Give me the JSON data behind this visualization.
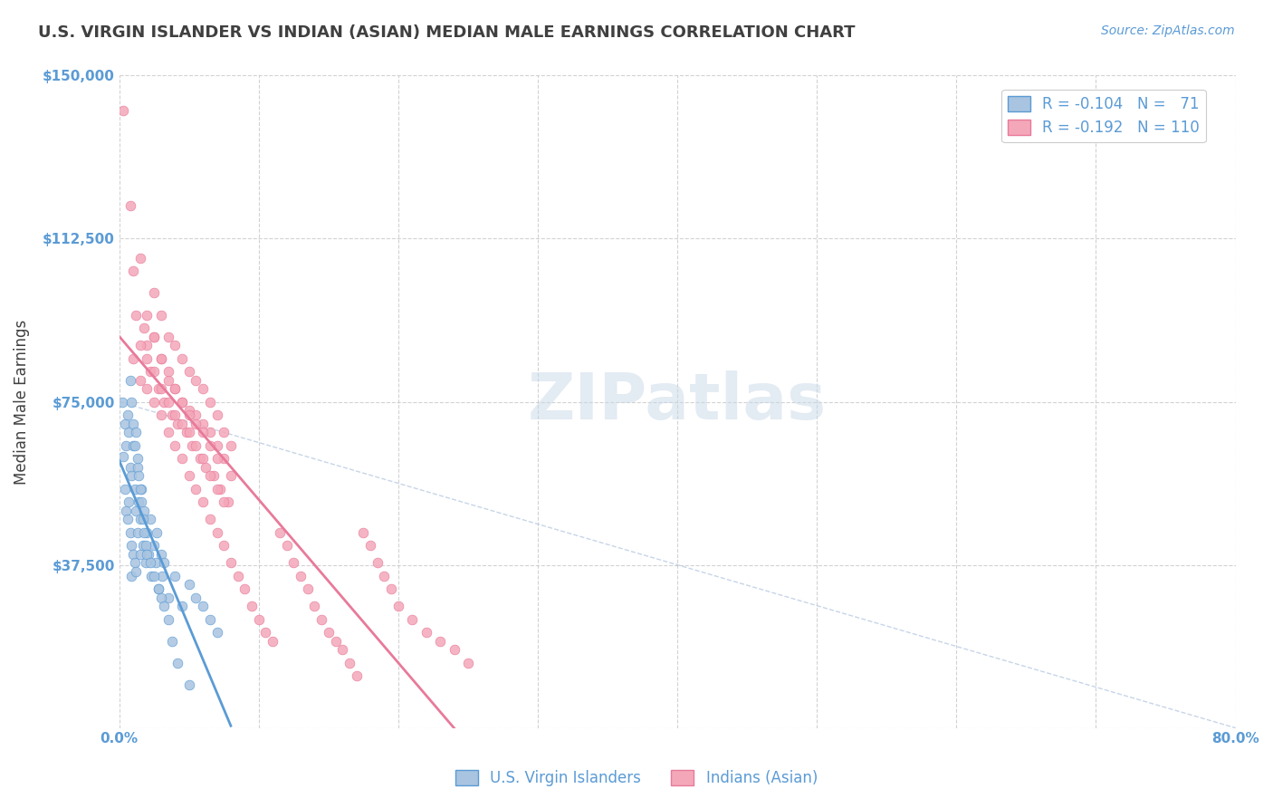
{
  "title": "U.S. VIRGIN ISLANDER VS INDIAN (ASIAN) MEDIAN MALE EARNINGS CORRELATION CHART",
  "source": "Source: ZipAtlas.com",
  "xlabel": "",
  "ylabel": "Median Male Earnings",
  "xlim": [
    0.0,
    0.8
  ],
  "ylim": [
    0,
    150000
  ],
  "yticks": [
    0,
    37500,
    75000,
    112500,
    150000
  ],
  "ytick_labels": [
    "",
    "$37,500",
    "$75,000",
    "$112,500",
    "$150,000"
  ],
  "xticks": [
    0.0,
    0.1,
    0.2,
    0.3,
    0.4,
    0.5,
    0.6,
    0.7,
    0.8
  ],
  "xtick_labels": [
    "0.0%",
    "",
    "",
    "",
    "",
    "",
    "",
    "",
    "80.0%"
  ],
  "legend_R1": "R = -0.104",
  "legend_N1": "N =  71",
  "legend_R2": "R = -0.192",
  "legend_N2": "N = 110",
  "series1_color": "#a8c4e0",
  "series2_color": "#f4a7b9",
  "trend1_color": "#5b9bd5",
  "trend2_color": "#e87a9a",
  "dashed_color": "#b0c4de",
  "watermark": "ZIPatlas",
  "watermark_color": "#c8d8e8",
  "title_color": "#404040",
  "axis_color": "#5b9bd5",
  "series1_name": "U.S. Virgin Islanders",
  "series2_name": "Indians (Asian)",
  "series1_R": -0.104,
  "series1_N": 71,
  "series2_R": -0.192,
  "series2_N": 110,
  "blue_scatter_x": [
    0.002,
    0.003,
    0.004,
    0.004,
    0.005,
    0.005,
    0.006,
    0.006,
    0.007,
    0.007,
    0.008,
    0.008,
    0.009,
    0.009,
    0.009,
    0.01,
    0.01,
    0.011,
    0.011,
    0.012,
    0.012,
    0.013,
    0.013,
    0.014,
    0.015,
    0.015,
    0.016,
    0.017,
    0.018,
    0.019,
    0.02,
    0.021,
    0.022,
    0.023,
    0.025,
    0.026,
    0.027,
    0.028,
    0.03,
    0.031,
    0.032,
    0.035,
    0.04,
    0.045,
    0.05,
    0.055,
    0.06,
    0.065,
    0.07,
    0.008,
    0.009,
    0.01,
    0.011,
    0.012,
    0.013,
    0.014,
    0.015,
    0.016,
    0.017,
    0.018,
    0.019,
    0.02,
    0.022,
    0.025,
    0.028,
    0.03,
    0.032,
    0.035,
    0.038,
    0.042,
    0.05
  ],
  "blue_scatter_y": [
    75000,
    62500,
    70000,
    55000,
    65000,
    50000,
    72000,
    48000,
    68000,
    52000,
    60000,
    45000,
    58000,
    42000,
    35000,
    65000,
    40000,
    55000,
    38000,
    50000,
    36000,
    60000,
    45000,
    52000,
    48000,
    40000,
    55000,
    42000,
    50000,
    38000,
    45000,
    40000,
    48000,
    35000,
    42000,
    38000,
    45000,
    32000,
    40000,
    35000,
    38000,
    30000,
    35000,
    28000,
    33000,
    30000,
    28000,
    25000,
    22000,
    80000,
    75000,
    70000,
    65000,
    68000,
    62000,
    58000,
    55000,
    52000,
    48000,
    45000,
    42000,
    40000,
    38000,
    35000,
    32000,
    30000,
    28000,
    25000,
    20000,
    15000,
    10000
  ],
  "pink_scatter_x": [
    0.003,
    0.008,
    0.01,
    0.012,
    0.015,
    0.018,
    0.02,
    0.022,
    0.025,
    0.028,
    0.03,
    0.032,
    0.035,
    0.038,
    0.04,
    0.042,
    0.045,
    0.048,
    0.05,
    0.052,
    0.055,
    0.058,
    0.06,
    0.062,
    0.065,
    0.068,
    0.07,
    0.072,
    0.075,
    0.078,
    0.08,
    0.025,
    0.03,
    0.035,
    0.04,
    0.045,
    0.05,
    0.055,
    0.06,
    0.065,
    0.07,
    0.075,
    0.08,
    0.02,
    0.025,
    0.03,
    0.035,
    0.04,
    0.045,
    0.05,
    0.055,
    0.06,
    0.065,
    0.07,
    0.015,
    0.02,
    0.025,
    0.03,
    0.035,
    0.04,
    0.045,
    0.05,
    0.055,
    0.06,
    0.065,
    0.07,
    0.075,
    0.01,
    0.015,
    0.02,
    0.025,
    0.03,
    0.035,
    0.04,
    0.045,
    0.05,
    0.055,
    0.06,
    0.065,
    0.07,
    0.075,
    0.08,
    0.085,
    0.09,
    0.095,
    0.1,
    0.105,
    0.11,
    0.115,
    0.12,
    0.125,
    0.13,
    0.135,
    0.14,
    0.145,
    0.15,
    0.155,
    0.16,
    0.165,
    0.17,
    0.175,
    0.18,
    0.185,
    0.19,
    0.195,
    0.2,
    0.21,
    0.22,
    0.23,
    0.24,
    0.25
  ],
  "pink_scatter_y": [
    142000,
    120000,
    105000,
    95000,
    108000,
    92000,
    88000,
    82000,
    90000,
    78000,
    85000,
    75000,
    80000,
    72000,
    78000,
    70000,
    75000,
    68000,
    73000,
    65000,
    72000,
    62000,
    70000,
    60000,
    68000,
    58000,
    65000,
    55000,
    62000,
    52000,
    58000,
    100000,
    95000,
    90000,
    88000,
    85000,
    82000,
    80000,
    78000,
    75000,
    72000,
    68000,
    65000,
    95000,
    90000,
    85000,
    82000,
    78000,
    75000,
    72000,
    70000,
    68000,
    65000,
    62000,
    88000,
    85000,
    82000,
    78000,
    75000,
    72000,
    70000,
    68000,
    65000,
    62000,
    58000,
    55000,
    52000,
    85000,
    80000,
    78000,
    75000,
    72000,
    68000,
    65000,
    62000,
    58000,
    55000,
    52000,
    48000,
    45000,
    42000,
    38000,
    35000,
    32000,
    28000,
    25000,
    22000,
    20000,
    45000,
    42000,
    38000,
    35000,
    32000,
    28000,
    25000,
    22000,
    20000,
    18000,
    15000,
    12000,
    45000,
    42000,
    38000,
    35000,
    32000,
    28000,
    25000,
    22000,
    20000,
    18000,
    15000
  ]
}
